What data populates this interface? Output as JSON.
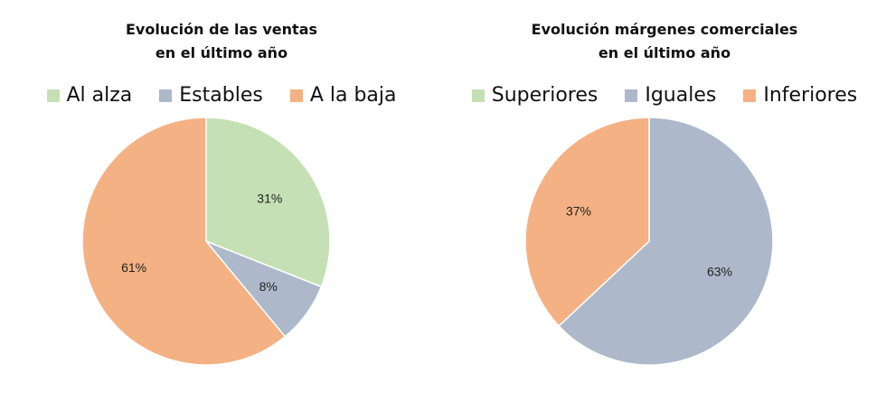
{
  "colors": {
    "up": "#c5e0b4",
    "stable": "#adb9ca",
    "down": "#f4b183"
  },
  "chart_data": [
    {
      "type": "pie",
      "title": "Evolución de las ventas",
      "subtitle": "en el último año",
      "categories": [
        "Al alza",
        "Estables",
        "A la baja"
      ],
      "values": [
        31,
        8,
        61
      ],
      "labels": [
        "31%",
        "8%",
        "61%"
      ],
      "colors": [
        "#c5e0b4",
        "#adb9ca",
        "#f4b183"
      ],
      "legend": "top"
    },
    {
      "type": "pie",
      "title": "Evolución márgenes comerciales",
      "subtitle": "en el último año",
      "categories": [
        "Superiores",
        "Iguales",
        "Inferiores"
      ],
      "values": [
        0,
        63,
        37
      ],
      "labels": [
        "",
        "63%",
        "37%"
      ],
      "colors": [
        "#c5e0b4",
        "#adb9ca",
        "#f4b183"
      ],
      "legend": "top"
    }
  ]
}
